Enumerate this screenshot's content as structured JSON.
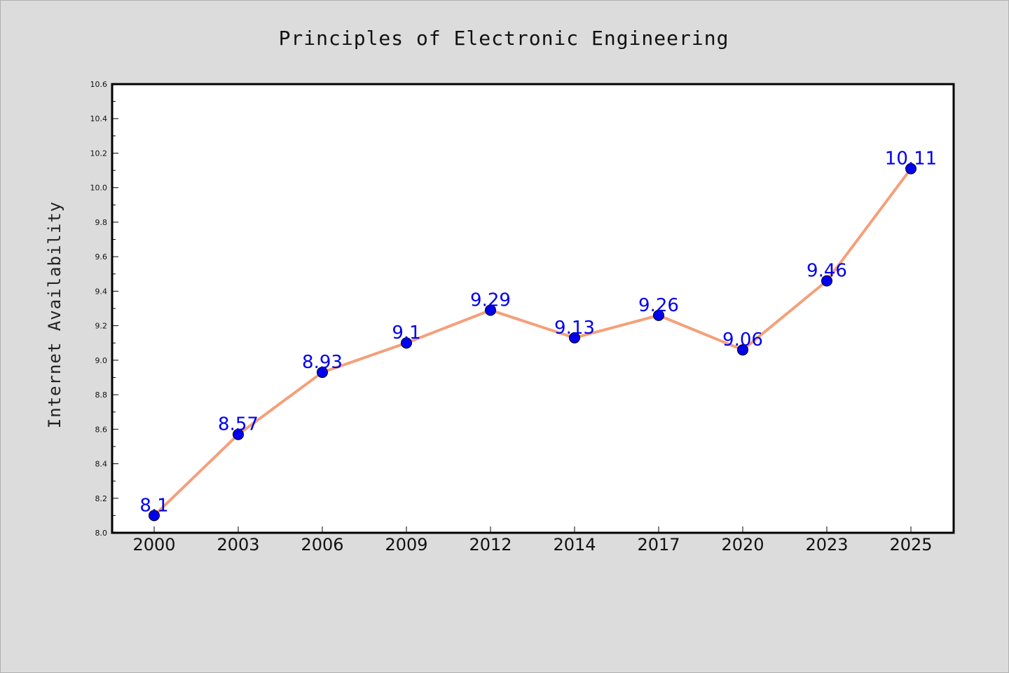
{
  "chart_data": {
    "type": "line",
    "title": "Principles of Electronic Engineering",
    "xlabel": "",
    "ylabel": "Internet Availability",
    "categories": [
      "2000",
      "2003",
      "2006",
      "2009",
      "2012",
      "2014",
      "2017",
      "2020",
      "2023",
      "2025"
    ],
    "series": [
      {
        "values": [
          8.1,
          8.57,
          8.93,
          9.1,
          9.29,
          9.13,
          9.26,
          9.06,
          9.46,
          10.11
        ],
        "line_color": "#f4a07a",
        "marker_color": "#0000ee"
      }
    ],
    "data_labels": [
      "8.1",
      "8.57",
      "8.93",
      "9.1",
      "9.29",
      "9.13",
      "9.26",
      "9.06",
      "9.46",
      "10.11"
    ],
    "data_label_color": "#0000ee",
    "ylim": [
      8.0,
      10.6
    ],
    "yticks": [
      "8.0",
      "8.2",
      "8.4",
      "8.6",
      "8.8",
      "9.0",
      "9.2",
      "9.4",
      "9.6",
      "9.8",
      "10.0",
      "10.2",
      "10.4",
      "10.6"
    ],
    "grid": false,
    "legend": "none"
  }
}
